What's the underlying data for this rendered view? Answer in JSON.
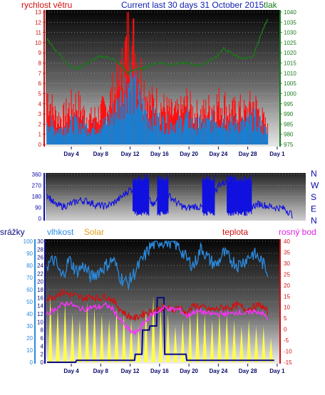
{
  "header": {
    "title": "Current last 30 days 31 October 2015"
  },
  "colors": {
    "wind": "#ff1010",
    "gust": "#1a7fd0",
    "pressure": "#1a7a1a",
    "direction": "#1010e0",
    "humidity": "#2a8be0",
    "solar": "#ffff40",
    "rain": "#0a0a80",
    "temp": "#d01010",
    "dew": "#ff30ff"
  },
  "chart_data": [
    {
      "type": "line",
      "title": "Current last 30 days 31 October 2015",
      "left_axis_label": "rychlost větru",
      "right_axis_label": "tlak",
      "x_ticks": [
        "Day 4",
        "Day 8",
        "Day 12",
        "Day 16",
        "Day 20",
        "Day 24",
        "Day 28",
        "Day 1"
      ],
      "x_range_days": [
        1,
        31
      ],
      "ylim_left": [
        0,
        13
      ],
      "yticks_left": [
        0,
        1,
        2,
        3,
        4,
        5,
        6,
        7,
        8,
        9,
        10,
        11,
        12,
        13
      ],
      "ylim_right": [
        975,
        1040
      ],
      "yticks_right": [
        975,
        980,
        985,
        990,
        995,
        1000,
        1005,
        1010,
        1015,
        1020,
        1025,
        1030,
        1035,
        1040
      ],
      "series": [
        {
          "name": "rychlost větru",
          "x": [
            1,
            2,
            3,
            4,
            5,
            6,
            7,
            8,
            9,
            10,
            11,
            12,
            13,
            14,
            15,
            16,
            17,
            18,
            19,
            20,
            21,
            22,
            23,
            24,
            25,
            26,
            27,
            28,
            29,
            30,
            31
          ],
          "values": [
            5,
            3,
            2.5,
            3.5,
            4,
            3,
            2.5,
            3,
            3.5,
            5,
            6,
            10,
            9,
            6,
            4,
            4,
            3.5,
            3,
            3,
            4,
            3,
            3,
            3.5,
            4,
            4,
            3,
            3.5,
            3,
            4,
            3,
            1.5
          ]
        },
        {
          "name": "gust",
          "x": [
            1,
            2,
            3,
            4,
            5,
            6,
            7,
            8,
            9,
            10,
            11,
            12,
            13,
            14,
            15,
            16,
            17,
            18,
            19,
            20,
            21,
            22,
            23,
            24,
            25,
            26,
            27,
            28,
            29,
            30,
            31
          ],
          "values": [
            2.5,
            1.5,
            1.5,
            2,
            2,
            1.8,
            1.5,
            1.8,
            2,
            3,
            4,
            6,
            5,
            3.5,
            2.5,
            2.5,
            2,
            2,
            2,
            2.5,
            1.8,
            2,
            2,
            2.5,
            2.5,
            2,
            2,
            2,
            2.5,
            2,
            1
          ]
        },
        {
          "name": "tlak",
          "x": [
            1,
            2,
            3,
            4,
            5,
            6,
            7,
            8,
            9,
            10,
            11,
            12,
            13,
            14,
            15,
            16,
            17,
            18,
            19,
            20,
            21,
            22,
            23,
            24,
            25,
            26,
            27,
            28,
            29,
            30,
            31
          ],
          "values": [
            1027,
            1022,
            1018,
            1014,
            1012,
            1014,
            1016,
            1018,
            1018,
            1017,
            1014,
            1010,
            1012,
            1012,
            1014,
            1015,
            1015,
            1014,
            1015,
            1015,
            1014,
            1014,
            1016,
            1018,
            1022,
            1020,
            1018,
            1017,
            1018,
            1028,
            1037
          ]
        }
      ]
    },
    {
      "type": "line",
      "ylim": [
        0,
        360
      ],
      "yticks": [
        0,
        90,
        180,
        270,
        360
      ],
      "compass_labels": [
        "N",
        "W",
        "S",
        "E",
        "N"
      ],
      "series": [
        {
          "name": "direction",
          "x": [
            1,
            2,
            3,
            4,
            5,
            6,
            7,
            8,
            9,
            10,
            11,
            12,
            13,
            14,
            15,
            16,
            17,
            18,
            19,
            20,
            21,
            22,
            23,
            24,
            25,
            26,
            27,
            28,
            29,
            30,
            31
          ],
          "values": [
            200,
            110,
            100,
            120,
            150,
            140,
            110,
            100,
            120,
            170,
            230,
            250,
            200,
            100,
            220,
            180,
            120,
            80,
            100,
            90,
            140,
            280,
            300,
            280,
            130,
            100,
            120,
            100,
            90,
            80,
            30
          ]
        }
      ]
    },
    {
      "type": "line",
      "left_axis_label_rain": "srážky",
      "left_axis_label_humidity": "vlhkost",
      "solar_label": "Solar",
      "right_axis_label_temp": "teplota",
      "right_axis_label_dew": "rosný bod",
      "x_ticks": [
        "Day 4",
        "Day 8",
        "Day 12",
        "Day 16",
        "Day 20",
        "Day 24",
        "Day 28",
        "Day 1"
      ],
      "x_range_days": [
        1,
        31
      ],
      "ylim_rain": [
        0,
        30
      ],
      "yticks_rain": [
        0,
        2,
        4,
        6,
        8,
        10,
        12,
        14,
        16,
        18,
        20,
        22,
        24,
        26,
        28,
        30
      ],
      "ylim_humidity": [
        0,
        100
      ],
      "yticks_humidity": [
        0,
        10,
        20,
        30,
        40,
        50,
        60,
        70,
        80,
        90,
        100
      ],
      "ylim_temp": [
        -15,
        40
      ],
      "yticks_temp": [
        -15,
        -10,
        -5,
        0,
        5,
        10,
        15,
        20,
        25,
        30,
        35,
        40
      ],
      "series": [
        {
          "name": "vlhkost",
          "x": [
            1,
            2,
            3,
            4,
            5,
            6,
            7,
            8,
            9,
            10,
            11,
            12,
            13,
            14,
            15,
            16,
            17,
            18,
            19,
            20,
            21,
            22,
            23,
            24,
            25,
            26,
            27,
            28,
            29,
            30,
            31
          ],
          "values": [
            80,
            85,
            70,
            85,
            75,
            80,
            70,
            75,
            80,
            85,
            70,
            65,
            75,
            85,
            95,
            100,
            100,
            100,
            95,
            85,
            80,
            95,
            85,
            80,
            90,
            85,
            80,
            85,
            90,
            85,
            75
          ]
        },
        {
          "name": "teplota",
          "x": [
            1,
            2,
            3,
            4,
            5,
            6,
            7,
            8,
            9,
            10,
            11,
            12,
            13,
            14,
            15,
            16,
            17,
            18,
            19,
            20,
            21,
            22,
            23,
            24,
            25,
            26,
            27,
            28,
            29,
            30,
            31
          ],
          "values": [
            14,
            15,
            17,
            16,
            15,
            14,
            15,
            14,
            15,
            13,
            9,
            6,
            5,
            7,
            8,
            9,
            10,
            9,
            10,
            7,
            11,
            10,
            9,
            9,
            10,
            10,
            11,
            9,
            10,
            11,
            8
          ]
        },
        {
          "name": "rosný bod",
          "x": [
            1,
            2,
            3,
            4,
            5,
            6,
            7,
            8,
            9,
            10,
            11,
            12,
            13,
            14,
            15,
            16,
            17,
            18,
            19,
            20,
            21,
            22,
            23,
            24,
            25,
            26,
            27,
            28,
            29,
            30,
            31
          ],
          "values": [
            7,
            9,
            11,
            12,
            10,
            9,
            10,
            10,
            11,
            9,
            4,
            0,
            -2,
            2,
            6,
            8,
            10,
            9,
            9,
            6,
            8,
            8,
            7,
            7,
            7,
            7,
            8,
            7,
            8,
            8,
            5
          ]
        },
        {
          "name": "Solar",
          "x": [
            1,
            2,
            3,
            4,
            5,
            6,
            7,
            8,
            9,
            10,
            11,
            12,
            13,
            14,
            15,
            16,
            17,
            18,
            19,
            20,
            21,
            22,
            23,
            24,
            25,
            26,
            27,
            28,
            29,
            30,
            31
          ],
          "values": [
            55,
            45,
            50,
            40,
            35,
            50,
            45,
            40,
            35,
            45,
            40,
            35,
            30,
            45,
            55,
            45,
            40,
            30,
            35,
            40,
            45,
            40,
            35,
            40,
            40,
            35,
            30,
            35,
            30,
            30,
            20
          ]
        },
        {
          "name": "srážky",
          "x": [
            1,
            2,
            3,
            4,
            5,
            6,
            7,
            8,
            9,
            10,
            11,
            12,
            13,
            14,
            15,
            16,
            17,
            18,
            19,
            20,
            21,
            22,
            23,
            24,
            25,
            26,
            27,
            28,
            29,
            30,
            31
          ],
          "values": [
            0,
            0,
            0,
            0,
            0.5,
            0.5,
            0.5,
            0.5,
            0.5,
            0.5,
            0.5,
            0.5,
            2,
            8,
            9,
            16,
            2,
            2,
            2,
            0.5,
            0.5,
            0.5,
            0.5,
            0.5,
            0.5,
            0.5,
            0.5,
            0.5,
            0.5,
            0.5,
            0.5
          ]
        }
      ]
    }
  ]
}
